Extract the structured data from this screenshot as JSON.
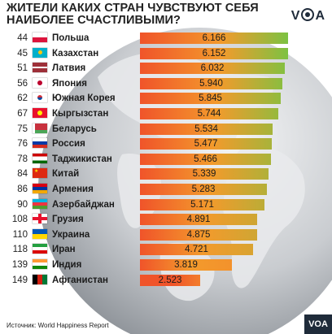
{
  "header": {
    "title": "ЖИТЕЛИ КАКИХ СТРАН ЧУВСТВУЮТ СЕБЯ НАИБОЛЕЕ СЧАСТЛИВЫМИ?",
    "logo_text": "VOA"
  },
  "footer": {
    "source": "Источник: World Happiness Report",
    "badge": "VOA"
  },
  "chart_data": {
    "type": "bar",
    "orientation": "horizontal",
    "title": "ЖИТЕЛИ КАКИХ СТРАН ЧУВСТВУЮТ СЕБЯ НАИБОЛЕЕ СЧАСТЛИВЫМИ?",
    "xlim": [
      0,
      6.166
    ],
    "colors": {
      "low": "#f0542a",
      "mid": "#f39a2c",
      "high": "#7cc242"
    },
    "rows": [
      {
        "rank": "44",
        "country": "Польша",
        "value": 6.166,
        "label": "6.166",
        "flag": "pl"
      },
      {
        "rank": "45",
        "country": "Казахстан",
        "value": 6.152,
        "label": "6.152",
        "flag": "kz"
      },
      {
        "rank": "51",
        "country": "Латвия",
        "value": 6.032,
        "label": "6.032",
        "flag": "lv"
      },
      {
        "rank": "56",
        "country": "Япония",
        "value": 5.94,
        "label": "5.940",
        "flag": "jp"
      },
      {
        "rank": "62",
        "country": "Южная Корея",
        "value": 5.845,
        "label": "5.845",
        "flag": "kr"
      },
      {
        "rank": "67",
        "country": "Кыргызстан",
        "value": 5.744,
        "label": "5.744",
        "flag": "kg"
      },
      {
        "rank": "75",
        "country": "Беларусь",
        "value": 5.534,
        "label": "5.534",
        "flag": "by"
      },
      {
        "rank": "76",
        "country": "Россия",
        "value": 5.477,
        "label": "5.477",
        "flag": "ru"
      },
      {
        "rank": "78",
        "country": "Таджикистан",
        "value": 5.466,
        "label": "5.466",
        "flag": "tj"
      },
      {
        "rank": "84",
        "country": "Китай",
        "value": 5.339,
        "label": "5.339",
        "flag": "cn"
      },
      {
        "rank": "86",
        "country": "Армения",
        "value": 5.283,
        "label": "5.283",
        "flag": "am"
      },
      {
        "rank": "90",
        "country": "Азербайджан",
        "value": 5.171,
        "label": "5.171",
        "flag": "az"
      },
      {
        "rank": "108",
        "country": "Грузия",
        "value": 4.891,
        "label": "4.891",
        "flag": "ge"
      },
      {
        "rank": "110",
        "country": "Украина",
        "value": 4.875,
        "label": "4.875",
        "flag": "ua"
      },
      {
        "rank": "118",
        "country": "Иран",
        "value": 4.721,
        "label": "4.721",
        "flag": "ir"
      },
      {
        "rank": "139",
        "country": "Индия",
        "value": 3.819,
        "label": "3.819",
        "flag": "in"
      },
      {
        "rank": "149",
        "country": "Афганистан",
        "value": 2.523,
        "label": "2.523",
        "flag": "af"
      }
    ]
  }
}
